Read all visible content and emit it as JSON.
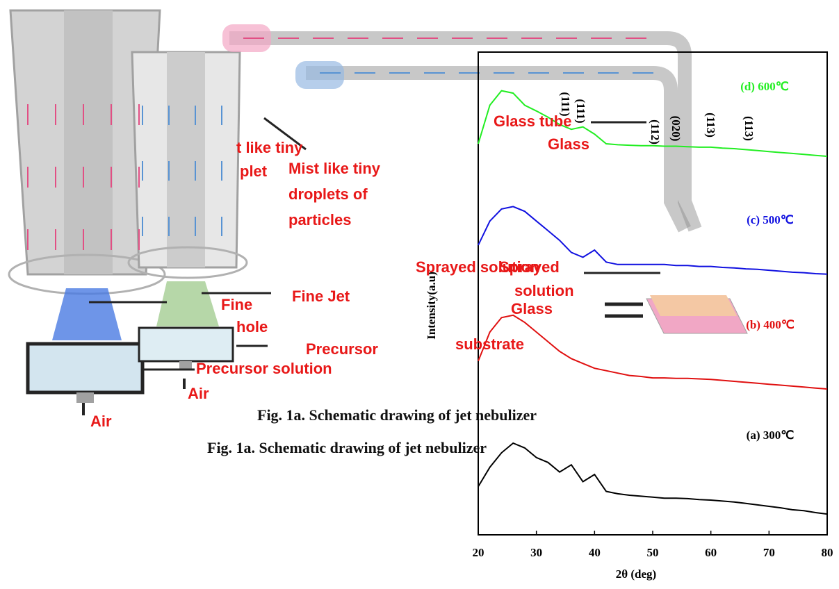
{
  "chart_data": {
    "type": "line",
    "xlabel": "2θ (deg)",
    "ylabel": "Intensity(a.u)",
    "x": [
      20,
      22,
      24,
      26,
      28,
      30,
      32,
      34,
      36,
      38,
      40,
      42,
      44,
      46,
      48,
      50,
      52,
      54,
      56,
      58,
      60,
      62,
      64,
      66,
      68,
      70,
      72,
      74,
      76,
      78,
      80
    ],
    "series": [
      {
        "name": "(d) 600℃",
        "color": "#22ee22",
        "values": [
          81,
          89,
          92,
          91.5,
          89,
          87.8,
          86.5,
          85,
          84,
          84.5,
          83,
          81,
          80.8,
          80.7,
          80.6,
          80.6,
          80.5,
          80.5,
          80.4,
          80.3,
          80.3,
          80.1,
          80,
          79.8,
          79.6,
          79.4,
          79.2,
          79,
          78.8,
          78.6,
          78.4
        ]
      },
      {
        "name": "(c) 500℃",
        "color": "#1010e0",
        "values": [
          60,
          65,
          67.5,
          68,
          67,
          65,
          63,
          61,
          58.5,
          57.5,
          59,
          56.5,
          56,
          56,
          56,
          56,
          56,
          55.8,
          55.8,
          55.6,
          55.6,
          55.4,
          55.3,
          55.1,
          55,
          54.8,
          54.6,
          54.4,
          54.3,
          54.1,
          54
        ]
      },
      {
        "name": "(b) 400℃",
        "color": "#e01010",
        "values": [
          36,
          42,
          45,
          45.5,
          44,
          42,
          40,
          38,
          36.5,
          35.5,
          34.5,
          34,
          33.5,
          33,
          32.8,
          32.5,
          32.5,
          32.4,
          32.4,
          32.3,
          32.2,
          32,
          31.8,
          31.6,
          31.4,
          31.2,
          31,
          30.8,
          30.6,
          30.4,
          30.2
        ]
      },
      {
        "name": "(a) 300℃",
        "color": "#000000",
        "values": [
          10,
          14,
          17,
          19,
          18,
          16,
          15,
          13,
          14.5,
          11,
          12.5,
          9,
          8.5,
          8.2,
          8,
          7.8,
          7.6,
          7.6,
          7.5,
          7.3,
          7.2,
          7,
          6.8,
          6.5,
          6.2,
          5.9,
          5.6,
          5.2,
          5,
          4.6,
          4.3
        ]
      }
    ],
    "xlim": [
      20,
      80
    ],
    "xticks": [
      20,
      30,
      40,
      50,
      60,
      70,
      80
    ],
    "ylim": [
      0,
      100
    ],
    "annotations": [
      "(111)",
      "(111)",
      "(112)",
      "(020)",
      "(113)",
      "(113)"
    ]
  },
  "diagram": {
    "labels": [
      "Glass tube",
      "Glass",
      "Fine Jet",
      "Fine",
      "hole",
      "Precursor",
      "Precursor solution",
      "Air",
      "Air",
      "Sprayed solution",
      "Sprayed",
      "solution",
      "Glass",
      "substrate",
      "t like tiny",
      "plet"
    ],
    "mist_lines": [
      "Mist like tiny",
      "droplets of",
      "particles"
    ],
    "captions": [
      "Fig. 1a. Schematic drawing of jet nebulizer",
      "Fig. 1a. Schematic drawing of jet nebulizer"
    ]
  }
}
